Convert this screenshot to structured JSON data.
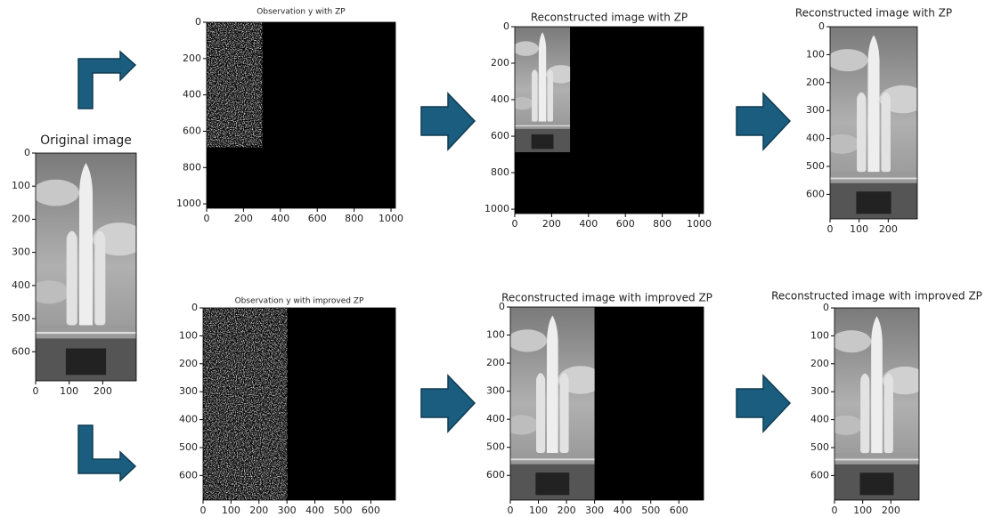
{
  "panels": [
    {
      "title": "Original image",
      "xlim": [
        0,
        300
      ],
      "ylim": [
        0,
        688
      ],
      "xticks": [
        0,
        100,
        200
      ],
      "yticks": [
        0,
        100,
        200,
        300,
        400,
        500,
        600
      ]
    },
    {
      "title": "Observation y with ZP",
      "xlim": [
        0,
        1024
      ],
      "ylim": [
        0,
        1024
      ],
      "xticks": [
        0,
        200,
        400,
        600,
        800,
        1000
      ],
      "yticks": [
        0,
        200,
        400,
        600,
        800,
        1000
      ]
    },
    {
      "title": "Reconstructed image with ZP",
      "xlim": [
        0,
        1024
      ],
      "ylim": [
        0,
        1024
      ],
      "xticks": [
        0,
        200,
        400,
        600,
        800,
        1000
      ],
      "yticks": [
        0,
        200,
        400,
        600,
        800,
        1000
      ]
    },
    {
      "title": "Reconstructed image with ZP",
      "xlim": [
        0,
        300
      ],
      "ylim": [
        0,
        688
      ],
      "xticks": [
        0,
        100,
        200
      ],
      "yticks": [
        0,
        100,
        200,
        300,
        400,
        500,
        600
      ]
    },
    {
      "title": "Observation y with improved ZP",
      "xlim": [
        0,
        688
      ],
      "ylim": [
        0,
        688
      ],
      "xticks": [
        0,
        100,
        200,
        300,
        400,
        500,
        600
      ],
      "yticks": [
        0,
        100,
        200,
        300,
        400,
        500,
        600
      ]
    },
    {
      "title": "Reconstructed image with improved ZP",
      "xlim": [
        0,
        688
      ],
      "ylim": [
        0,
        688
      ],
      "xticks": [
        0,
        100,
        200,
        300,
        400,
        500,
        600
      ],
      "yticks": [
        0,
        100,
        200,
        300,
        400,
        500,
        600
      ]
    },
    {
      "title": "Reconstructed image with improved ZP",
      "xlim": [
        0,
        300
      ],
      "ylim": [
        0,
        688
      ],
      "xticks": [
        0,
        100,
        200
      ],
      "yticks": [
        0,
        100,
        200,
        300,
        400,
        500,
        600
      ]
    }
  ]
}
